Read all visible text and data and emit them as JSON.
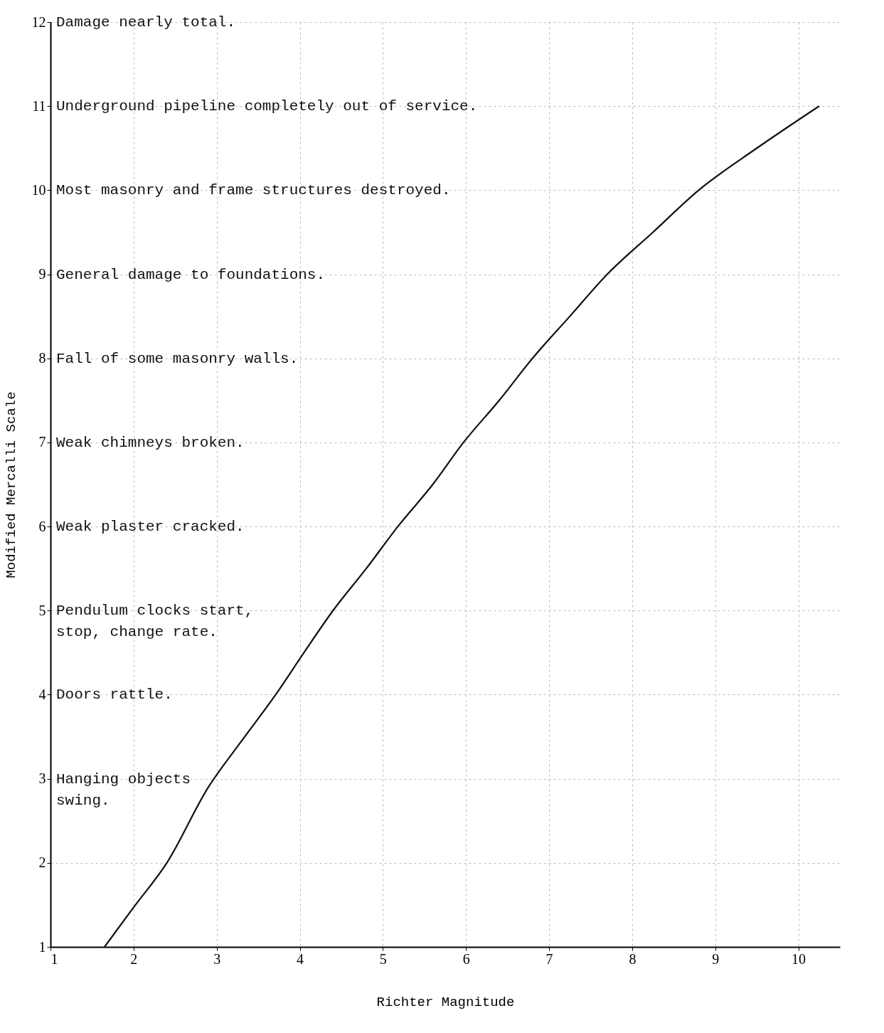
{
  "chart_data": {
    "type": "line",
    "xlabel": "Richter Magnitude",
    "ylabel": "Modified Mercalli Scale",
    "x": [
      1.65,
      2.0,
      2.4,
      2.9,
      3.3,
      3.71,
      4.05,
      4.4,
      4.8,
      5.18,
      5.6,
      5.97,
      6.4,
      6.8,
      7.25,
      7.7,
      8.25,
      8.8,
      9.5,
      10.25
    ],
    "series": [
      {
        "color": "#111111",
        "values": [
          1,
          1.47,
          2,
          2.9,
          3.45,
          4,
          4.5,
          5,
          5.5,
          6,
          6.5,
          7,
          7.5,
          8,
          8.5,
          9,
          9.5,
          10,
          10.5,
          11
        ]
      }
    ],
    "xlim": [
      1,
      10.5
    ],
    "ylim": [
      1,
      12
    ],
    "xticks": [
      1,
      2,
      3,
      4,
      5,
      6,
      7,
      8,
      9,
      10
    ],
    "yticks": [
      1,
      2,
      3,
      4,
      5,
      6,
      7,
      8,
      9,
      10,
      11,
      12
    ],
    "grid": true,
    "marker": "none",
    "line_style": "solid",
    "annotations": [
      "Damage nearly total.",
      "Underground pipeline completely out of service.",
      "Most masonry and frame structures destroyed.",
      "General damage to foundations.",
      "Fall of some masonry walls.",
      "Weak chimneys broken.",
      "Weak plaster cracked.",
      "Pendulum clocks start,\nstop, change rate.",
      "Doors rattle.",
      "Hanging objects\nswing."
    ]
  }
}
